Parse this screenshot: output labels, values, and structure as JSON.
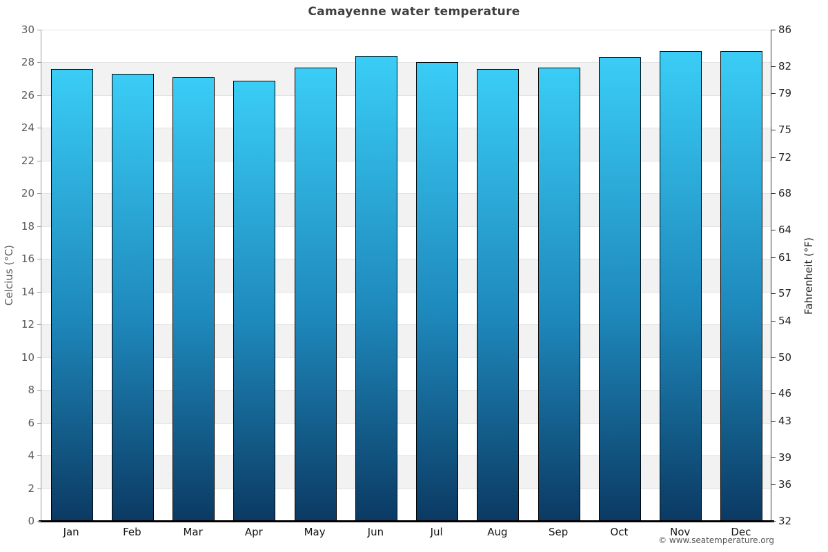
{
  "title": "Camayenne water temperature",
  "footer": "© www.seatemperature.org",
  "chart_data": {
    "type": "bar",
    "title": "Camayenne water temperature",
    "categories": [
      "Jan",
      "Feb",
      "Mar",
      "Apr",
      "May",
      "Jun",
      "Jul",
      "Aug",
      "Sep",
      "Oct",
      "Nov",
      "Dec"
    ],
    "series": [
      {
        "name": "Water temperature (°C)",
        "values": [
          27.6,
          27.3,
          27.1,
          26.9,
          27.7,
          28.4,
          28.0,
          27.6,
          27.7,
          28.3,
          28.7,
          28.7
        ]
      }
    ],
    "xlabel": "",
    "ylabel_left": "Celcius (°C)",
    "ylabel_right": "Fahrenheit (°F)",
    "ylim_c": [
      0,
      30
    ],
    "ylim_f": [
      32,
      86
    ],
    "yticks_c": [
      30,
      28,
      26,
      24,
      22,
      20,
      18,
      16,
      14,
      12,
      10,
      8,
      6,
      4,
      2,
      0
    ],
    "yticks_f": [
      86,
      82,
      79,
      75,
      72,
      68,
      64,
      61,
      57,
      54,
      50,
      46,
      43,
      39,
      36,
      32
    ],
    "grid": "alternating horizontal bands, 2°C each, white and light gray",
    "legend": "none",
    "colors": {
      "bar_gradient_top": "#3acdf6",
      "bar_gradient_mid": "#1e88bb",
      "bar_gradient_bottom": "#0b3a63",
      "bar_border": "#000000",
      "band_gray": "#f2f2f2",
      "band_white": "#ffffff",
      "grid_line": "#e2e2e2",
      "axis_line_left": "#989898",
      "axis_line_right": "#333333",
      "x_axis_line": "#000000",
      "title_text": "#3f3f3f",
      "tick_text_left": "#595959",
      "tick_text_right": "#262626"
    }
  }
}
